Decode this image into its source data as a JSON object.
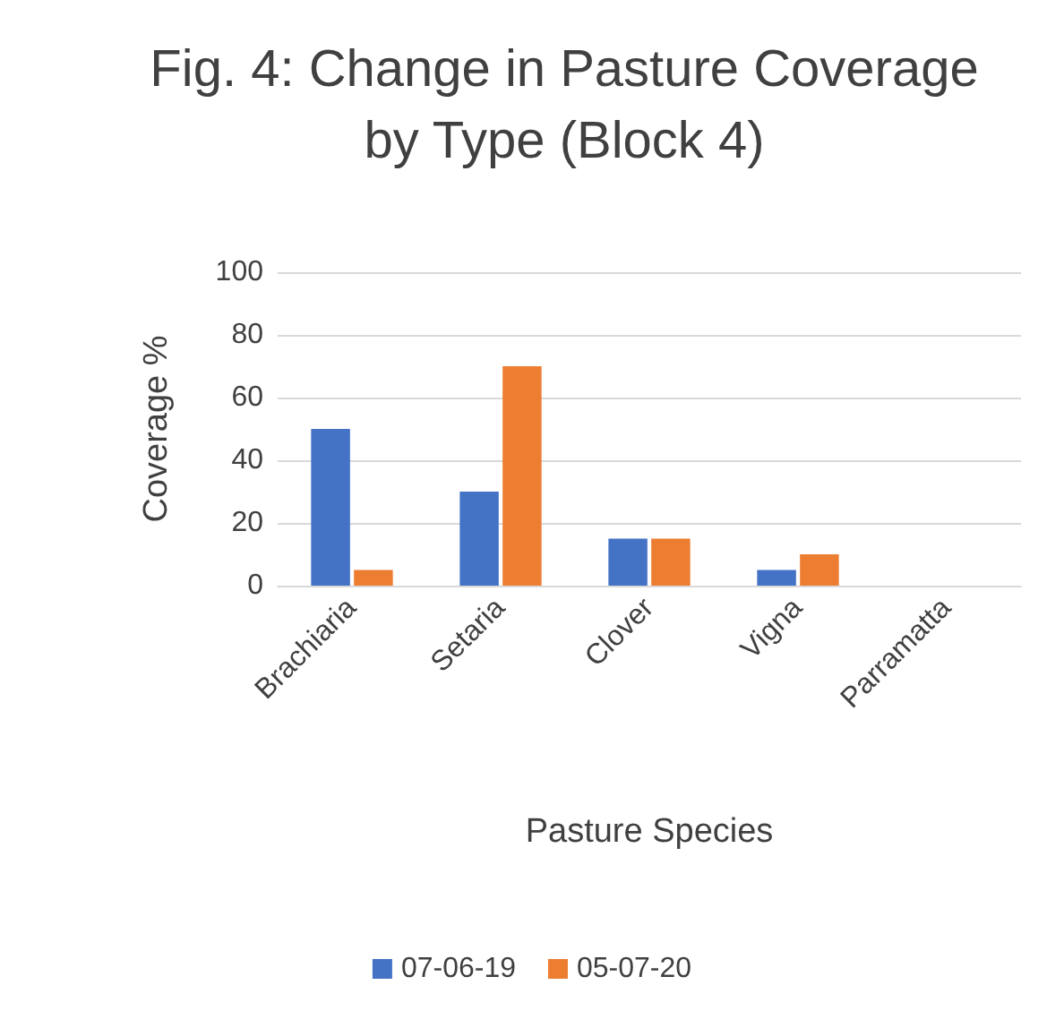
{
  "chart_data": {
    "type": "bar",
    "title": "Fig. 4: Change in Pasture Coverage by Type (Block 4)",
    "xlabel": "Pasture Species",
    "ylabel": "Coverage %",
    "categories": [
      "Brachiaria",
      "Setaria",
      "Clover",
      "Vigna",
      "Parramatta"
    ],
    "series": [
      {
        "name": "07-06-19",
        "color": "#4472c4",
        "values": [
          50,
          30,
          15,
          5,
          0
        ]
      },
      {
        "name": "05-07-20",
        "color": "#ed7d31",
        "values": [
          5,
          70,
          15,
          10,
          0
        ]
      }
    ],
    "ylim": [
      0,
      100
    ],
    "yticks": [
      0,
      20,
      40,
      60,
      80,
      100
    ],
    "grid": "y",
    "legend": "bottom"
  }
}
